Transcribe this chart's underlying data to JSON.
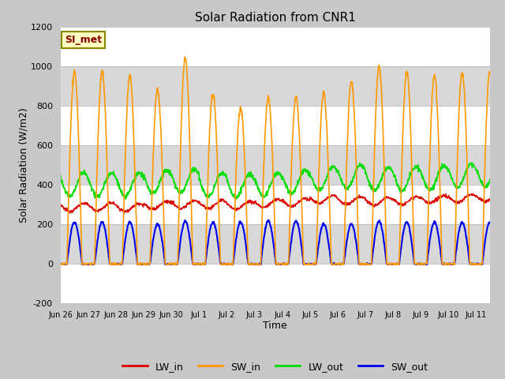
{
  "title": "Solar Radiation from CNR1",
  "xlabel": "Time",
  "ylabel": "Solar Radiation (W/m2)",
  "ylim": [
    -200,
    1200
  ],
  "annotation": "SI_met",
  "legend": [
    "LW_in",
    "SW_in",
    "LW_out",
    "SW_out"
  ],
  "colors": {
    "LW_in": "#dd0000",
    "SW_in": "#ff9900",
    "LW_out": "#00dd00",
    "SW_out": "#0000ee"
  },
  "band_colors": [
    "#ffffff",
    "#e0e0e0"
  ],
  "fig_bg": "#c8c8c8",
  "plot_bg": "#e8e8e8",
  "x_tick_labels": [
    "Jun 26",
    "Jun 27",
    "Jun 28",
    "Jun 29",
    "Jun 30",
    "Jul 1",
    "Jul 2",
    "Jul 3",
    "Jul 4",
    "Jul 5",
    "Jul 6",
    "Jul 7",
    "Jul 8",
    "Jul 9",
    "Jul 10",
    "Jul 11"
  ],
  "n_days": 15.5,
  "points_per_day": 96,
  "lw_in_base": 305,
  "lw_out_base": 430,
  "sw_in_peak": 1000,
  "sw_out_peak": 210
}
